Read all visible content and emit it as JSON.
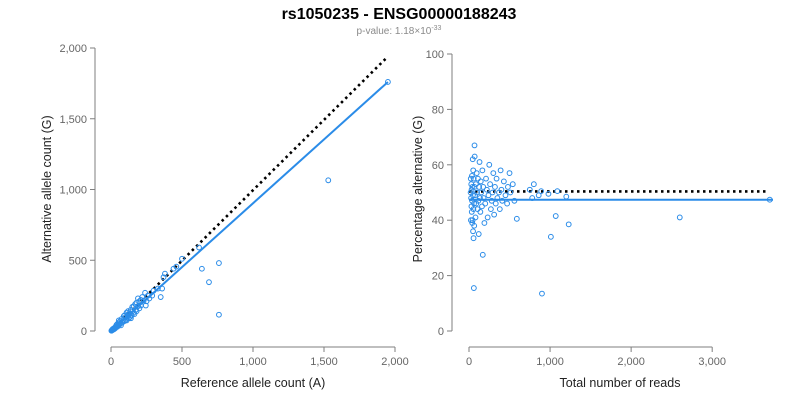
{
  "title": "rs1050235 - ENSG00000188243",
  "subtitle": {
    "prefix": "p-value: 1.18×10",
    "exponent": "-33"
  },
  "colors": {
    "points": "#2b8ce8",
    "fit_line": "#2b8ce8",
    "reference_line": "#000000",
    "axis": "#7f7f7f"
  },
  "chart_data": [
    {
      "type": "scatter",
      "xlabel": "Reference allele count (A)",
      "ylabel": "Alternative allele count (G)",
      "xlim": [
        0,
        2000
      ],
      "ylim": [
        0,
        2000
      ],
      "xticks": [
        0,
        500,
        1000,
        1500,
        2000
      ],
      "xtick_labels": [
        "0",
        "500",
        "1,000",
        "1,500",
        "2,000"
      ],
      "yticks": [
        0,
        500,
        1000,
        1500,
        2000
      ],
      "ytick_labels": [
        "0",
        "500",
        "1,000",
        "1,500",
        "2,000"
      ],
      "grid": false,
      "reference_line": {
        "style": "dotted",
        "from": [
          0,
          0
        ],
        "to": [
          1950,
          1940
        ]
      },
      "fit_line": {
        "style": "solid",
        "from": [
          0,
          0
        ],
        "to": [
          1950,
          1760
        ]
      },
      "points": [
        [
          1950,
          1760
        ],
        [
          1530,
          1065
        ],
        [
          760,
          480
        ],
        [
          760,
          115
        ],
        [
          690,
          345
        ],
        [
          640,
          440
        ],
        [
          620,
          590
        ],
        [
          500,
          510
        ],
        [
          460,
          455
        ],
        [
          440,
          440
        ],
        [
          380,
          405
        ],
        [
          370,
          380
        ],
        [
          360,
          300
        ],
        [
          350,
          240
        ],
        [
          330,
          300
        ],
        [
          300,
          285
        ],
        [
          290,
          250
        ],
        [
          270,
          230
        ],
        [
          250,
          210
        ],
        [
          240,
          270
        ],
        [
          220,
          240
        ],
        [
          210,
          180
        ],
        [
          200,
          160
        ],
        [
          190,
          230
        ],
        [
          180,
          200
        ],
        [
          175,
          150
        ],
        [
          165,
          120
        ],
        [
          160,
          175
        ],
        [
          150,
          140
        ],
        [
          145,
          110
        ],
        [
          140,
          150
        ],
        [
          130,
          125
        ],
        [
          125,
          90
        ],
        [
          120,
          115
        ],
        [
          115,
          100
        ],
        [
          110,
          130
        ],
        [
          105,
          80
        ],
        [
          100,
          95
        ],
        [
          95,
          70
        ],
        [
          90,
          105
        ],
        [
          85,
          75
        ],
        [
          80,
          60
        ],
        [
          75,
          85
        ],
        [
          70,
          55
        ],
        [
          65,
          70
        ],
        [
          60,
          45
        ],
        [
          55,
          60
        ],
        [
          50,
          40
        ],
        [
          45,
          50
        ],
        [
          40,
          35
        ],
        [
          38,
          42
        ],
        [
          35,
          25
        ],
        [
          32,
          30
        ],
        [
          30,
          20
        ],
        [
          28,
          24
        ],
        [
          25,
          15
        ],
        [
          22,
          20
        ],
        [
          20,
          12
        ],
        [
          18,
          16
        ],
        [
          15,
          10
        ],
        [
          12,
          14
        ],
        [
          10,
          8
        ],
        [
          8,
          6
        ],
        [
          6,
          5
        ],
        [
          5,
          3
        ],
        [
          3,
          2
        ],
        [
          150,
          170
        ],
        [
          170,
          190
        ],
        [
          200,
          210
        ],
        [
          230,
          215
        ],
        [
          260,
          250
        ],
        [
          180,
          140
        ],
        [
          140,
          90
        ],
        [
          120,
          140
        ],
        [
          95,
          110
        ],
        [
          70,
          40
        ],
        [
          55,
          75
        ],
        [
          45,
          30
        ],
        [
          110,
          75
        ],
        [
          135,
          100
        ],
        [
          160,
          130
        ],
        [
          190,
          175
        ],
        [
          210,
          220
        ],
        [
          245,
          180
        ]
      ]
    },
    {
      "type": "scatter",
      "xlabel": "Total number of reads",
      "ylabel": "Percentage alternative (G)",
      "xlim": [
        0,
        3750
      ],
      "ylim": [
        0,
        100
      ],
      "xticks": [
        0,
        1000,
        2000,
        3000
      ],
      "xtick_labels": [
        "0",
        "1,000",
        "2,000",
        "3,000"
      ],
      "yticks": [
        0,
        20,
        40,
        60,
        80,
        100
      ],
      "ytick_labels": [
        "0",
        "20",
        "40",
        "60",
        "80",
        "100"
      ],
      "grid": false,
      "reference_line": {
        "style": "dotted",
        "y": 50.4,
        "x_range": [
          0,
          3700
        ]
      },
      "fit_line": {
        "style": "solid",
        "y": 47.4,
        "x_range": [
          0,
          3750
        ]
      },
      "points": [
        [
          3710,
          47.4
        ],
        [
          2600,
          41
        ],
        [
          1230,
          38.5
        ],
        [
          1200,
          48.5
        ],
        [
          1090,
          50.5
        ],
        [
          1070,
          41.5
        ],
        [
          1010,
          34
        ],
        [
          980,
          49.5
        ],
        [
          900,
          13.5
        ],
        [
          890,
          50.5
        ],
        [
          860,
          49
        ],
        [
          800,
          53
        ],
        [
          780,
          48
        ],
        [
          750,
          51
        ],
        [
          590,
          40.5
        ],
        [
          560,
          47
        ],
        [
          540,
          53
        ],
        [
          510,
          50
        ],
        [
          500,
          57
        ],
        [
          480,
          52
        ],
        [
          470,
          46
        ],
        [
          450,
          49
        ],
        [
          430,
          54
        ],
        [
          410,
          47
        ],
        [
          400,
          51
        ],
        [
          390,
          58
        ],
        [
          380,
          44
        ],
        [
          370,
          50
        ],
        [
          350,
          48
        ],
        [
          340,
          55
        ],
        [
          330,
          46
        ],
        [
          320,
          52
        ],
        [
          310,
          42
        ],
        [
          300,
          57
        ],
        [
          290,
          50
        ],
        [
          280,
          47
        ],
        [
          270,
          44
        ],
        [
          260,
          53
        ],
        [
          250,
          60
        ],
        [
          240,
          49
        ],
        [
          230,
          41
        ],
        [
          220,
          51
        ],
        [
          210,
          55
        ],
        [
          200,
          46
        ],
        [
          190,
          39
        ],
        [
          180,
          48
        ],
        [
          175,
          52
        ],
        [
          170,
          27.5
        ],
        [
          165,
          58
        ],
        [
          160,
          45
        ],
        [
          150,
          50
        ],
        [
          145,
          54
        ],
        [
          140,
          43
        ],
        [
          135,
          48
        ],
        [
          130,
          61
        ],
        [
          125,
          52
        ],
        [
          120,
          35
        ],
        [
          115,
          47
        ],
        [
          110,
          55
        ],
        [
          105,
          44
        ],
        [
          100,
          50
        ],
        [
          95,
          57
        ],
        [
          90,
          46
        ],
        [
          85,
          53
        ],
        [
          80,
          41
        ],
        [
          75,
          49
        ],
        [
          70,
          63
        ],
        [
          68,
          67
        ],
        [
          66,
          52
        ],
        [
          64,
          38
        ],
        [
          62,
          46
        ],
        [
          60,
          15.5
        ],
        [
          58,
          55
        ],
        [
          56,
          33.5
        ],
        [
          54,
          44
        ],
        [
          52,
          58
        ],
        [
          50,
          36
        ],
        [
          48,
          49
        ],
        [
          46,
          62
        ],
        [
          44,
          40
        ],
        [
          42,
          52
        ],
        [
          40,
          39
        ],
        [
          38,
          47
        ],
        [
          36,
          56
        ],
        [
          34,
          43
        ],
        [
          32,
          51
        ],
        [
          30,
          45
        ],
        [
          28,
          53
        ],
        [
          26,
          48
        ],
        [
          24,
          40
        ],
        [
          22,
          55
        ],
        [
          20,
          50
        ]
      ]
    }
  ]
}
